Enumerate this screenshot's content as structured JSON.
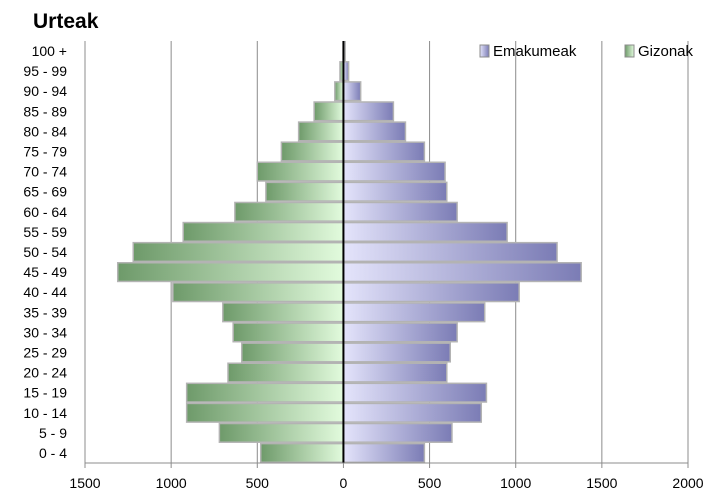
{
  "chart_data": {
    "type": "bar",
    "orientation": "horizontal",
    "variant": "population-pyramid",
    "title": "Urteak",
    "categories": [
      "0 - 4",
      "5 - 9",
      "10 - 14",
      "15 - 19",
      "20 - 24",
      "25 - 29",
      "30 - 34",
      "35 - 39",
      "40 - 44",
      "45 - 49",
      "50 - 54",
      "55 - 59",
      "60 - 64",
      "65 - 69",
      "70 - 74",
      "75 - 79",
      "80 - 84",
      "85 - 89",
      "90 - 94",
      "95 - 99",
      "100 +"
    ],
    "series": [
      {
        "name": "Emakumeak",
        "side": "right",
        "color": "#7b7cb5",
        "color_light": "#e4e4fb",
        "values": [
          470,
          630,
          800,
          830,
          600,
          620,
          660,
          820,
          1020,
          1380,
          1240,
          950,
          660,
          600,
          590,
          470,
          360,
          290,
          100,
          30,
          10
        ]
      },
      {
        "name": "Gizonak",
        "side": "left",
        "color": "#6e9a6a",
        "color_light": "#e2fbdd",
        "values": [
          480,
          720,
          910,
          910,
          670,
          590,
          640,
          700,
          990,
          1310,
          1220,
          930,
          630,
          450,
          500,
          360,
          260,
          170,
          50,
          20,
          0
        ]
      }
    ],
    "xlim": [
      -1500,
      2000
    ],
    "xticks": [
      -1500,
      -1000,
      -500,
      0,
      500,
      1000,
      1500,
      2000
    ],
    "xtick_labels": [
      "1500",
      "1000",
      "500",
      "0",
      "500",
      "1000",
      "1500",
      "2000"
    ],
    "grid": "vertical",
    "legend": "top-right"
  }
}
